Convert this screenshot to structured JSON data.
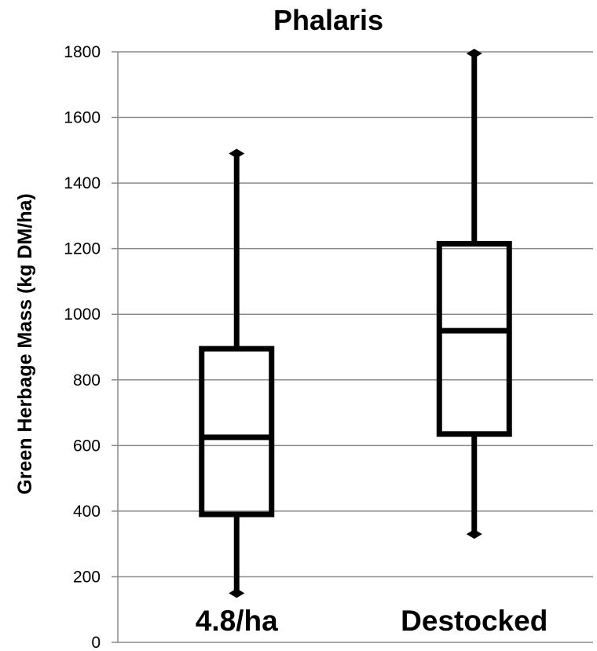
{
  "chart_data": {
    "type": "box",
    "title": "Phalaris",
    "ylabel": "Green Herbage Mass (kg DM/ha)",
    "xlabel": "",
    "ylim": [
      0,
      1800
    ],
    "yticks": [
      0,
      200,
      400,
      600,
      800,
      1000,
      1200,
      1400,
      1600,
      1800
    ],
    "grid": true,
    "categories": [
      "4.8/ha",
      "Destocked"
    ],
    "boxes": [
      {
        "category": "4.8/ha",
        "min": 150,
        "q1": 390,
        "median": 625,
        "q3": 895,
        "max": 1490
      },
      {
        "category": "Destocked",
        "min": 330,
        "q1": 635,
        "median": 950,
        "q3": 1215,
        "max": 1795
      }
    ]
  }
}
